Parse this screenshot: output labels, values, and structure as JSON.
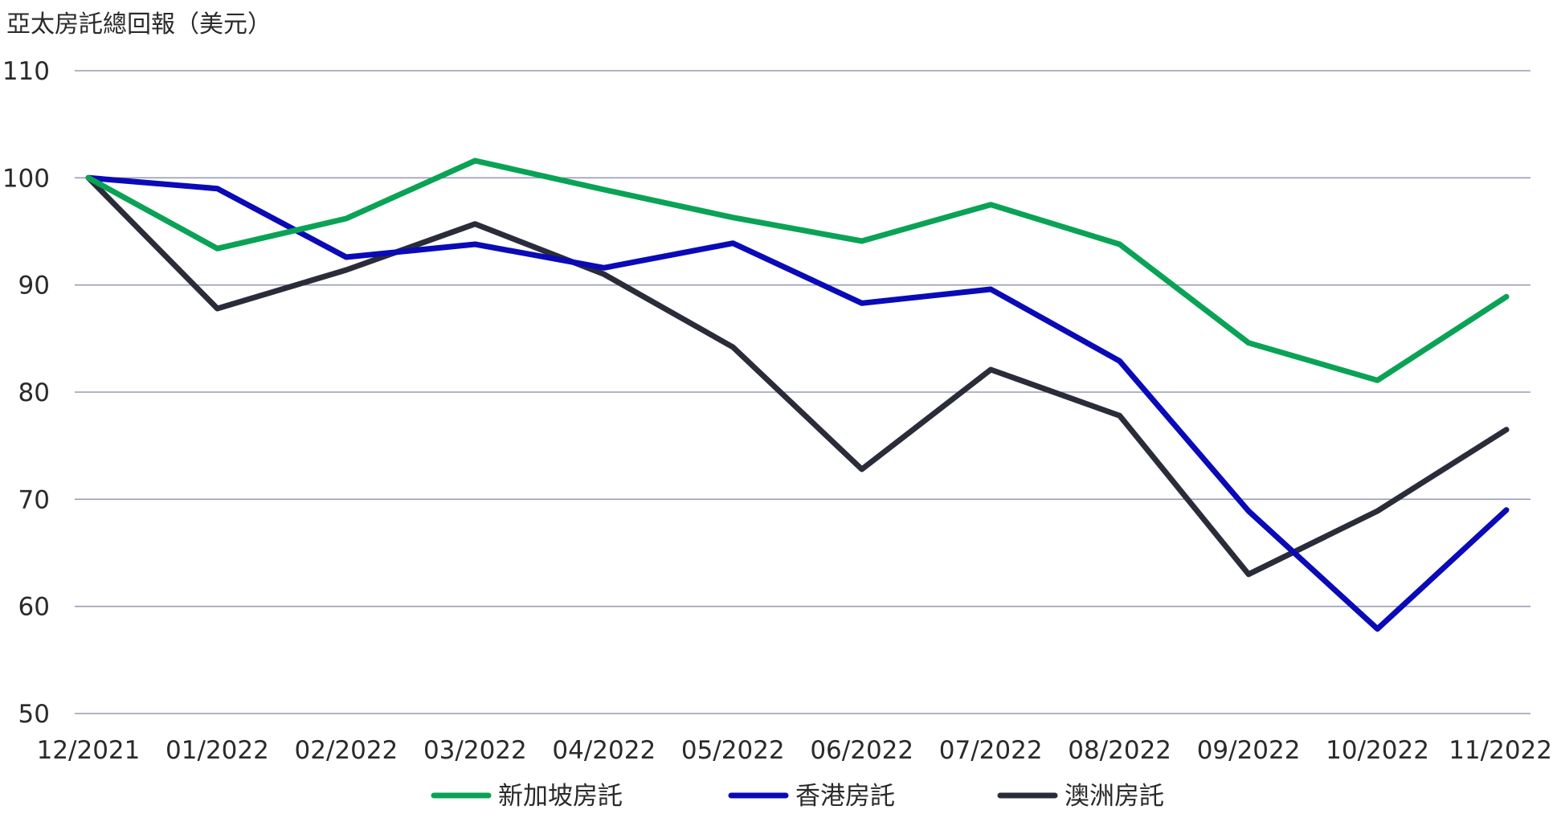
{
  "chart_data": {
    "type": "line",
    "title": "",
    "ylabel": "亞太房託總回報（美元）",
    "xlabel": "",
    "ylim": [
      50,
      110
    ],
    "yticks": [
      50,
      60,
      70,
      80,
      90,
      100,
      110
    ],
    "grid": true,
    "legend_position": "bottom-center",
    "categories": [
      "12/2021",
      "01/2022",
      "02/2022",
      "03/2022",
      "04/2022",
      "05/2022",
      "06/2022",
      "07/2022",
      "08/2022",
      "09/2022",
      "10/2022",
      "11/2022"
    ],
    "series": [
      {
        "name": "新加坡房託",
        "color": "#0aa356",
        "values": [
          100,
          93.4,
          96.2,
          101.6,
          98.9,
          96.3,
          94.1,
          97.5,
          93.8,
          84.6,
          81.1,
          88.9
        ]
      },
      {
        "name": "香港房託",
        "color": "#0a0ab8",
        "values": [
          100,
          99.0,
          92.6,
          93.8,
          91.6,
          93.9,
          88.3,
          89.6,
          82.9,
          68.9,
          57.9,
          69.0
        ]
      },
      {
        "name": "澳洲房託",
        "color": "#2a2c3a",
        "values": [
          100,
          87.8,
          91.4,
          95.7,
          91.0,
          84.2,
          72.8,
          82.1,
          77.8,
          63.0,
          68.9,
          76.5
        ]
      }
    ]
  }
}
